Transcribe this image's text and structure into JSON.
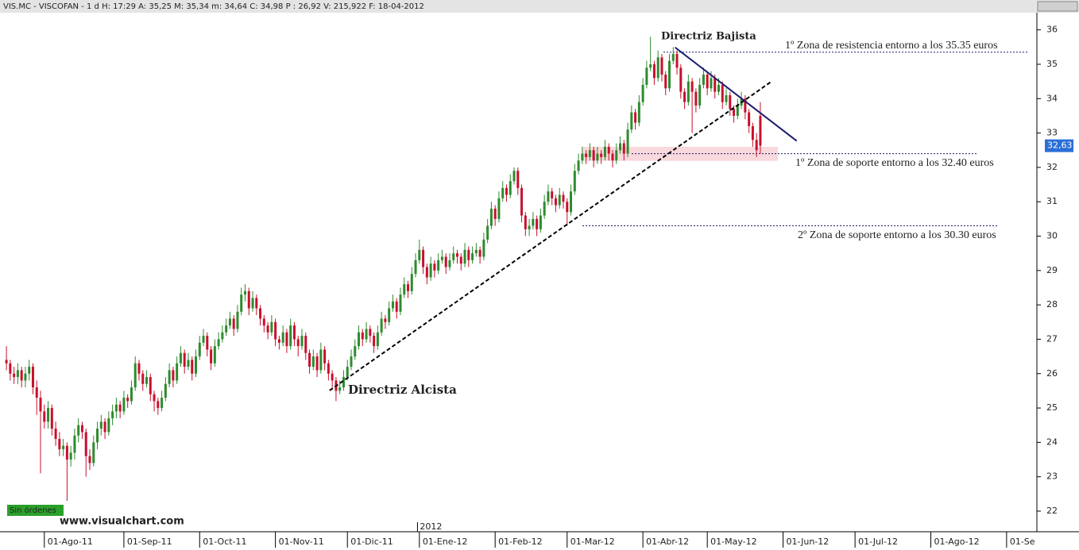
{
  "chart_data": {
    "type": "candlestick",
    "header": "VIS.MC - VISCOFAN -  1 d H: 17:29 A: 35,25 M: 35,34 m: 34,64 C: 34,98 P : 26,92 V: 215,922 F: 18-04-2012",
    "orders_label": "Sin órdenes",
    "watermark": "www.visualchart.com",
    "year_label": "2012",
    "last_price_label": "32,63",
    "annotations": [
      "Directriz Bajista",
      "Directriz Alcista",
      "1º Zona de resistencia entorno a los 35.35 euros",
      "1º Zona de soporte entorno a los 32.40 euros",
      "2º Zona de soporte entorno a los 30.30 euros"
    ],
    "levels": [
      35.35,
      32.4,
      30.3
    ],
    "zone": [
      32.19,
      32.6
    ],
    "trendlines": [
      {
        "name_index": 1,
        "x": [
          85.3,
          201.7
        ],
        "y": [
          25.51,
          34.48
        ],
        "color": "#000000",
        "dashed": true
      },
      {
        "name_index": 0,
        "x": [
          176.5,
          208.6
        ],
        "y": [
          35.49,
          32.77
        ],
        "color": "#1a1a6e",
        "dashed": false
      }
    ],
    "up_color": "#2e8b2e",
    "down_color": "#c8102e",
    "xlim": [
      -1.7,
      272
    ],
    "ylim": [
      21.4,
      36.5
    ],
    "yticks": [
      22,
      23,
      24,
      25,
      26,
      27,
      28,
      29,
      30,
      31,
      32,
      33,
      34,
      35,
      36
    ],
    "xticks": [
      {
        "value": 10,
        "label": "01-Ago-11"
      },
      {
        "value": 31,
        "label": "01-Sep-11"
      },
      {
        "value": 51,
        "label": "01-Oct-11"
      },
      {
        "value": 71,
        "label": "01-Nov-11"
      },
      {
        "value": 90,
        "label": "01-Dic-11"
      },
      {
        "value": 109,
        "label": "01-Ene-12"
      },
      {
        "value": 129,
        "label": "01-Feb-12"
      },
      {
        "value": 148,
        "label": "01-Mar-12"
      },
      {
        "value": 168,
        "label": "01-Abr-12"
      },
      {
        "value": 185,
        "label": "01-May-12"
      },
      {
        "value": 205,
        "label": "01-Jun-12"
      },
      {
        "value": 224,
        "label": "01-Jul-12"
      },
      {
        "value": 244,
        "label": "01-Ago-12"
      },
      {
        "value": 264,
        "label": "01-Se"
      }
    ],
    "year_tick": 108.5,
    "candles": [
      [
        26.4,
        26.8,
        26.1,
        26.3
      ],
      [
        26.3,
        26.4,
        25.8,
        26.0
      ],
      [
        26.0,
        26.2,
        25.7,
        25.9
      ],
      [
        25.9,
        26.3,
        25.7,
        26.1
      ],
      [
        26.1,
        26.2,
        25.6,
        25.8
      ],
      [
        25.8,
        26.2,
        25.6,
        26.0
      ],
      [
        26.0,
        26.4,
        25.8,
        26.2
      ],
      [
        26.2,
        26.3,
        25.4,
        25.6
      ],
      [
        25.6,
        25.8,
        24.8,
        25.3
      ],
      [
        25.3,
        25.5,
        23.1,
        24.9
      ],
      [
        24.9,
        25.1,
        24.4,
        24.6
      ],
      [
        24.6,
        25.2,
        24.4,
        25.0
      ],
      [
        25.0,
        25.1,
        24.2,
        24.4
      ],
      [
        24.4,
        24.6,
        23.9,
        24.1
      ],
      [
        24.1,
        24.3,
        23.6,
        23.8
      ],
      [
        23.8,
        24.1,
        23.6,
        23.9
      ],
      [
        23.9,
        24.0,
        22.3,
        23.5
      ],
      [
        23.5,
        23.9,
        23.3,
        23.7
      ],
      [
        23.7,
        24.4,
        23.5,
        24.2
      ],
      [
        24.2,
        24.7,
        24.0,
        24.5
      ],
      [
        24.5,
        24.6,
        24.1,
        24.3
      ],
      [
        24.3,
        24.4,
        23.0,
        23.6
      ],
      [
        23.6,
        23.8,
        23.2,
        23.4
      ],
      [
        23.4,
        24.2,
        23.3,
        24.0
      ],
      [
        24.0,
        24.6,
        23.8,
        24.4
      ],
      [
        24.4,
        24.8,
        24.2,
        24.6
      ],
      [
        24.6,
        24.7,
        24.1,
        24.3
      ],
      [
        24.3,
        24.9,
        24.2,
        24.7
      ],
      [
        24.7,
        25.1,
        24.5,
        24.9
      ],
      [
        24.9,
        25.3,
        24.7,
        25.1
      ],
      [
        25.1,
        25.2,
        24.7,
        24.9
      ],
      [
        24.9,
        25.5,
        24.8,
        25.3
      ],
      [
        25.3,
        25.4,
        25.0,
        25.2
      ],
      [
        25.2,
        25.8,
        25.1,
        25.6
      ],
      [
        25.6,
        26.5,
        25.5,
        26.3
      ],
      [
        26.3,
        26.4,
        25.8,
        26.0
      ],
      [
        26.0,
        26.1,
        25.5,
        25.7
      ],
      [
        25.7,
        26.1,
        25.6,
        25.9
      ],
      [
        25.9,
        26.0,
        25.2,
        25.4
      ],
      [
        25.4,
        25.5,
        24.9,
        25.2
      ],
      [
        25.2,
        25.3,
        24.8,
        25.0
      ],
      [
        25.0,
        25.5,
        24.9,
        25.3
      ],
      [
        25.3,
        25.9,
        25.2,
        25.7
      ],
      [
        25.7,
        26.3,
        25.6,
        26.1
      ],
      [
        26.1,
        26.2,
        25.6,
        25.8
      ],
      [
        25.8,
        26.5,
        25.7,
        26.3
      ],
      [
        26.3,
        26.8,
        26.2,
        26.6
      ],
      [
        26.6,
        26.7,
        26.0,
        26.2
      ],
      [
        26.2,
        26.6,
        26.1,
        26.4
      ],
      [
        26.4,
        26.5,
        25.8,
        26.0
      ],
      [
        26.0,
        26.7,
        25.9,
        26.5
      ],
      [
        26.5,
        27.1,
        26.4,
        26.9
      ],
      [
        26.9,
        27.3,
        26.8,
        27.1
      ],
      [
        27.1,
        27.2,
        26.5,
        26.7
      ],
      [
        26.7,
        26.8,
        26.1,
        26.3
      ],
      [
        26.3,
        27.0,
        26.2,
        26.8
      ],
      [
        26.8,
        27.2,
        26.7,
        27.0
      ],
      [
        27.0,
        27.4,
        26.9,
        27.2
      ],
      [
        27.2,
        27.6,
        27.1,
        27.4
      ],
      [
        27.4,
        27.8,
        27.3,
        27.6
      ],
      [
        27.6,
        27.7,
        27.1,
        27.3
      ],
      [
        27.3,
        28.0,
        27.2,
        27.8
      ],
      [
        27.8,
        28.5,
        27.7,
        28.3
      ],
      [
        28.3,
        28.6,
        28.1,
        28.4
      ],
      [
        28.4,
        28.5,
        27.7,
        27.9
      ],
      [
        27.9,
        28.4,
        27.8,
        28.2
      ],
      [
        28.2,
        28.3,
        27.7,
        27.9
      ],
      [
        27.9,
        28.0,
        27.4,
        27.6
      ],
      [
        27.6,
        27.7,
        27.2,
        27.4
      ],
      [
        27.4,
        27.5,
        27.0,
        27.2
      ],
      [
        27.2,
        27.7,
        27.1,
        27.5
      ],
      [
        27.5,
        27.6,
        26.8,
        27.0
      ],
      [
        27.0,
        27.1,
        26.7,
        26.9
      ],
      [
        26.9,
        27.4,
        26.8,
        27.2
      ],
      [
        27.2,
        27.3,
        26.6,
        26.8
      ],
      [
        26.8,
        27.6,
        26.7,
        27.4
      ],
      [
        27.4,
        27.5,
        26.8,
        27.0
      ],
      [
        27.0,
        27.1,
        26.5,
        26.8
      ],
      [
        26.8,
        27.3,
        26.7,
        27.1
      ],
      [
        27.1,
        27.2,
        26.4,
        26.6
      ],
      [
        26.6,
        26.7,
        26.0,
        26.2
      ],
      [
        26.2,
        26.7,
        26.1,
        26.5
      ],
      [
        26.5,
        26.6,
        25.9,
        26.1
      ],
      [
        26.1,
        26.9,
        26.0,
        26.7
      ],
      [
        26.7,
        26.8,
        26.1,
        26.3
      ],
      [
        26.3,
        26.4,
        25.8,
        26.0
      ],
      [
        26.0,
        26.1,
        25.6,
        25.8
      ],
      [
        25.8,
        25.9,
        25.2,
        25.5
      ],
      [
        25.5,
        25.8,
        25.4,
        25.6
      ],
      [
        25.6,
        26.1,
        25.5,
        25.9
      ],
      [
        25.9,
        26.4,
        25.8,
        26.2
      ],
      [
        26.2,
        26.7,
        26.1,
        26.5
      ],
      [
        26.5,
        27.0,
        26.4,
        26.8
      ],
      [
        26.8,
        27.4,
        26.7,
        27.2
      ],
      [
        27.2,
        27.3,
        26.8,
        27.0
      ],
      [
        27.0,
        27.5,
        26.9,
        27.3
      ],
      [
        27.3,
        27.4,
        26.9,
        27.1
      ],
      [
        27.1,
        27.2,
        26.6,
        26.8
      ],
      [
        26.8,
        27.4,
        26.7,
        27.2
      ],
      [
        27.2,
        27.8,
        27.1,
        27.6
      ],
      [
        27.6,
        27.7,
        27.3,
        27.5
      ],
      [
        27.5,
        28.1,
        27.4,
        27.9
      ],
      [
        27.9,
        28.3,
        27.8,
        28.1
      ],
      [
        28.1,
        28.2,
        27.6,
        27.8
      ],
      [
        27.8,
        28.5,
        27.7,
        28.3
      ],
      [
        28.3,
        28.8,
        28.2,
        28.6
      ],
      [
        28.6,
        28.7,
        28.2,
        28.4
      ],
      [
        28.4,
        29.1,
        28.3,
        28.9
      ],
      [
        28.9,
        29.5,
        28.8,
        29.3
      ],
      [
        29.3,
        29.9,
        29.2,
        29.6
      ],
      [
        29.6,
        29.7,
        28.9,
        29.1
      ],
      [
        29.1,
        29.2,
        28.6,
        28.8
      ],
      [
        28.8,
        29.4,
        28.7,
        29.2
      ],
      [
        29.2,
        29.3,
        28.8,
        29.0
      ],
      [
        29.0,
        29.5,
        28.9,
        29.3
      ],
      [
        29.3,
        29.6,
        29.2,
        29.4
      ],
      [
        29.4,
        29.5,
        28.9,
        29.1
      ],
      [
        29.1,
        29.5,
        29.0,
        29.3
      ],
      [
        29.3,
        29.7,
        29.2,
        29.5
      ],
      [
        29.5,
        29.6,
        29.2,
        29.4
      ],
      [
        29.4,
        29.5,
        29.0,
        29.2
      ],
      [
        29.2,
        29.8,
        29.1,
        29.6
      ],
      [
        29.6,
        29.7,
        29.1,
        29.3
      ],
      [
        29.3,
        29.7,
        29.2,
        29.5
      ],
      [
        29.5,
        29.8,
        29.4,
        29.6
      ],
      [
        29.6,
        29.7,
        29.2,
        29.4
      ],
      [
        29.4,
        30.1,
        29.3,
        29.9
      ],
      [
        29.9,
        30.5,
        29.8,
        30.3
      ],
      [
        30.3,
        31.0,
        30.2,
        30.8
      ],
      [
        30.8,
        30.9,
        30.3,
        30.5
      ],
      [
        30.5,
        31.3,
        30.4,
        31.1
      ],
      [
        31.1,
        31.6,
        31.0,
        31.4
      ],
      [
        31.4,
        31.5,
        31.0,
        31.2
      ],
      [
        31.2,
        31.8,
        31.1,
        31.6
      ],
      [
        31.6,
        32.0,
        31.5,
        31.9
      ],
      [
        31.9,
        32.0,
        31.2,
        31.4
      ],
      [
        31.4,
        31.5,
        30.4,
        30.6
      ],
      [
        30.6,
        30.7,
        30.0,
        30.2
      ],
      [
        30.2,
        30.5,
        30.0,
        30.3
      ],
      [
        30.3,
        30.7,
        30.2,
        30.5
      ],
      [
        30.5,
        30.6,
        30.0,
        30.2
      ],
      [
        30.2,
        30.8,
        30.1,
        30.6
      ],
      [
        30.6,
        31.2,
        30.5,
        31.0
      ],
      [
        31.0,
        31.5,
        30.9,
        31.3
      ],
      [
        31.3,
        31.4,
        30.9,
        31.1
      ],
      [
        31.1,
        31.2,
        30.7,
        30.9
      ],
      [
        30.9,
        31.4,
        30.8,
        31.2
      ],
      [
        31.2,
        31.3,
        30.8,
        31.0
      ],
      [
        31.0,
        31.1,
        30.3,
        30.7
      ],
      [
        30.7,
        31.5,
        30.6,
        31.3
      ],
      [
        31.3,
        32.1,
        31.2,
        31.9
      ],
      [
        31.9,
        32.4,
        31.8,
        32.2
      ],
      [
        32.2,
        32.6,
        32.1,
        32.4
      ],
      [
        32.4,
        32.5,
        32.1,
        32.3
      ],
      [
        32.3,
        32.7,
        32.2,
        32.5
      ],
      [
        32.5,
        32.6,
        32.0,
        32.2
      ],
      [
        32.2,
        32.6,
        32.1,
        32.4
      ],
      [
        32.4,
        32.5,
        32.1,
        32.3
      ],
      [
        32.3,
        32.8,
        32.2,
        32.6
      ],
      [
        32.6,
        32.7,
        32.2,
        32.4
      ],
      [
        32.4,
        32.5,
        32.0,
        32.2
      ],
      [
        32.2,
        32.7,
        32.1,
        32.5
      ],
      [
        32.5,
        32.9,
        32.4,
        32.7
      ],
      [
        32.7,
        32.8,
        32.2,
        32.4
      ],
      [
        32.4,
        33.3,
        32.3,
        33.1
      ],
      [
        33.1,
        33.8,
        33.0,
        33.6
      ],
      [
        33.6,
        33.7,
        33.1,
        33.3
      ],
      [
        33.3,
        34.1,
        33.2,
        33.9
      ],
      [
        33.9,
        34.6,
        33.8,
        34.4
      ],
      [
        34.4,
        35.1,
        34.3,
        34.9
      ],
      [
        34.9,
        35.8,
        34.8,
        35.0
      ],
      [
        35.0,
        35.1,
        34.4,
        34.6
      ],
      [
        34.6,
        35.4,
        34.5,
        35.2
      ],
      [
        35.2,
        35.3,
        34.5,
        34.7
      ],
      [
        34.7,
        34.8,
        34.1,
        34.3
      ],
      [
        34.3,
        35.3,
        34.2,
        35.1
      ],
      [
        35.1,
        35.5,
        35.0,
        35.3
      ],
      [
        35.3,
        35.4,
        34.7,
        34.9
      ],
      [
        34.9,
        35.0,
        34.0,
        34.2
      ],
      [
        34.2,
        34.3,
        33.7,
        33.9
      ],
      [
        33.9,
        34.7,
        33.8,
        34.5
      ],
      [
        34.5,
        34.6,
        33.0,
        34.2
      ],
      [
        34.2,
        34.3,
        33.6,
        33.8
      ],
      [
        33.8,
        34.6,
        33.7,
        34.4
      ],
      [
        34.4,
        34.9,
        34.3,
        34.7
      ],
      [
        34.7,
        34.8,
        34.1,
        34.3
      ],
      [
        34.3,
        34.8,
        34.2,
        34.6
      ],
      [
        34.6,
        34.7,
        34.0,
        34.2
      ],
      [
        34.2,
        34.6,
        34.1,
        34.4
      ],
      [
        34.4,
        34.5,
        33.7,
        33.9
      ],
      [
        33.9,
        34.3,
        33.8,
        34.1
      ],
      [
        34.1,
        34.2,
        33.5,
        33.7
      ],
      [
        33.7,
        33.8,
        33.3,
        33.5
      ],
      [
        33.5,
        34.0,
        33.4,
        33.8
      ],
      [
        33.8,
        34.2,
        33.7,
        34.0
      ],
      [
        34.0,
        34.1,
        33.4,
        33.6
      ],
      [
        33.6,
        33.7,
        33.0,
        33.2
      ],
      [
        33.2,
        33.3,
        32.6,
        32.8
      ],
      [
        32.8,
        33.0,
        32.3,
        32.5
      ],
      [
        33.5,
        33.9,
        32.4,
        32.63
      ]
    ]
  }
}
